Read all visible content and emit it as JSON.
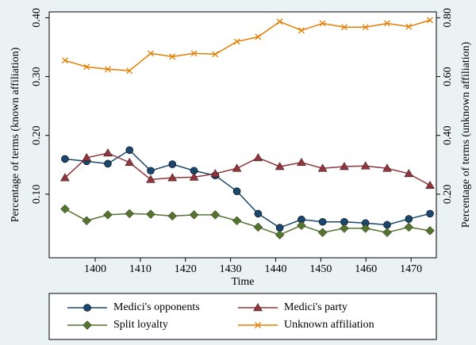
{
  "chart_data": {
    "type": "line",
    "xlabel": "Time",
    "ylabel": "Percentage of terms (known affiliation)",
    "y2label": "Percentage of terms (unknown affiliation)",
    "x": [
      1393.3,
      1398.1,
      1402.8,
      1407.6,
      1412.3,
      1417.1,
      1421.9,
      1426.6,
      1431.4,
      1436.1,
      1440.9,
      1445.7,
      1450.4,
      1455.2,
      1459.9,
      1464.7,
      1469.5,
      1474.2
    ],
    "xlim": [
      1389.8,
      1475.6
    ],
    "xticks": [
      1400,
      1410,
      1420,
      1430,
      1440,
      1450,
      1460,
      1470
    ],
    "ylim": [
      -0.008,
      0.41
    ],
    "yticks": [
      {
        "value": 0.1,
        "label": "0.10"
      },
      {
        "value": 0.2,
        "label": "0.20"
      },
      {
        "value": 0.3,
        "label": "0.30"
      },
      {
        "value": 0.4,
        "label": "0.40"
      }
    ],
    "y2lim": [
      -0.016,
      0.82
    ],
    "y2ticks": [
      {
        "value": 0.2,
        "label": "0.20"
      },
      {
        "value": 0.4,
        "label": "0.40"
      },
      {
        "value": 0.6,
        "label": "0.60"
      },
      {
        "value": 0.8,
        "label": "0.80"
      }
    ],
    "series": [
      {
        "name": "Medici's opponents",
        "color": "#1a476f",
        "marker": "circle",
        "values": [
          0.16,
          0.156,
          0.152,
          0.175,
          0.14,
          0.151,
          0.14,
          0.132,
          0.105,
          0.067,
          0.043,
          0.057,
          0.053,
          0.053,
          0.051,
          0.048,
          0.058,
          0.067
        ]
      },
      {
        "name": "Medici's party",
        "color": "#90353b",
        "marker": "triangle",
        "values": [
          0.128,
          0.162,
          0.17,
          0.154,
          0.125,
          0.128,
          0.129,
          0.135,
          0.144,
          0.162,
          0.147,
          0.154,
          0.144,
          0.147,
          0.148,
          0.144,
          0.135,
          0.115
        ]
      },
      {
        "name": "Split loyalty",
        "color": "#55752f",
        "marker": "diamond",
        "values": [
          0.075,
          0.055,
          0.065,
          0.067,
          0.066,
          0.063,
          0.065,
          0.065,
          0.055,
          0.044,
          0.031,
          0.047,
          0.035,
          0.042,
          0.042,
          0.035,
          0.044,
          0.038
        ]
      },
      {
        "name": "Unknown affiliation",
        "color": "#e37e00",
        "marker": "x",
        "axis": "y2",
        "values": [
          0.655,
          0.633,
          0.625,
          0.62,
          0.679,
          0.668,
          0.679,
          0.676,
          0.719,
          0.735,
          0.787,
          0.757,
          0.781,
          0.768,
          0.768,
          0.781,
          0.77,
          0.792
        ]
      }
    ]
  }
}
